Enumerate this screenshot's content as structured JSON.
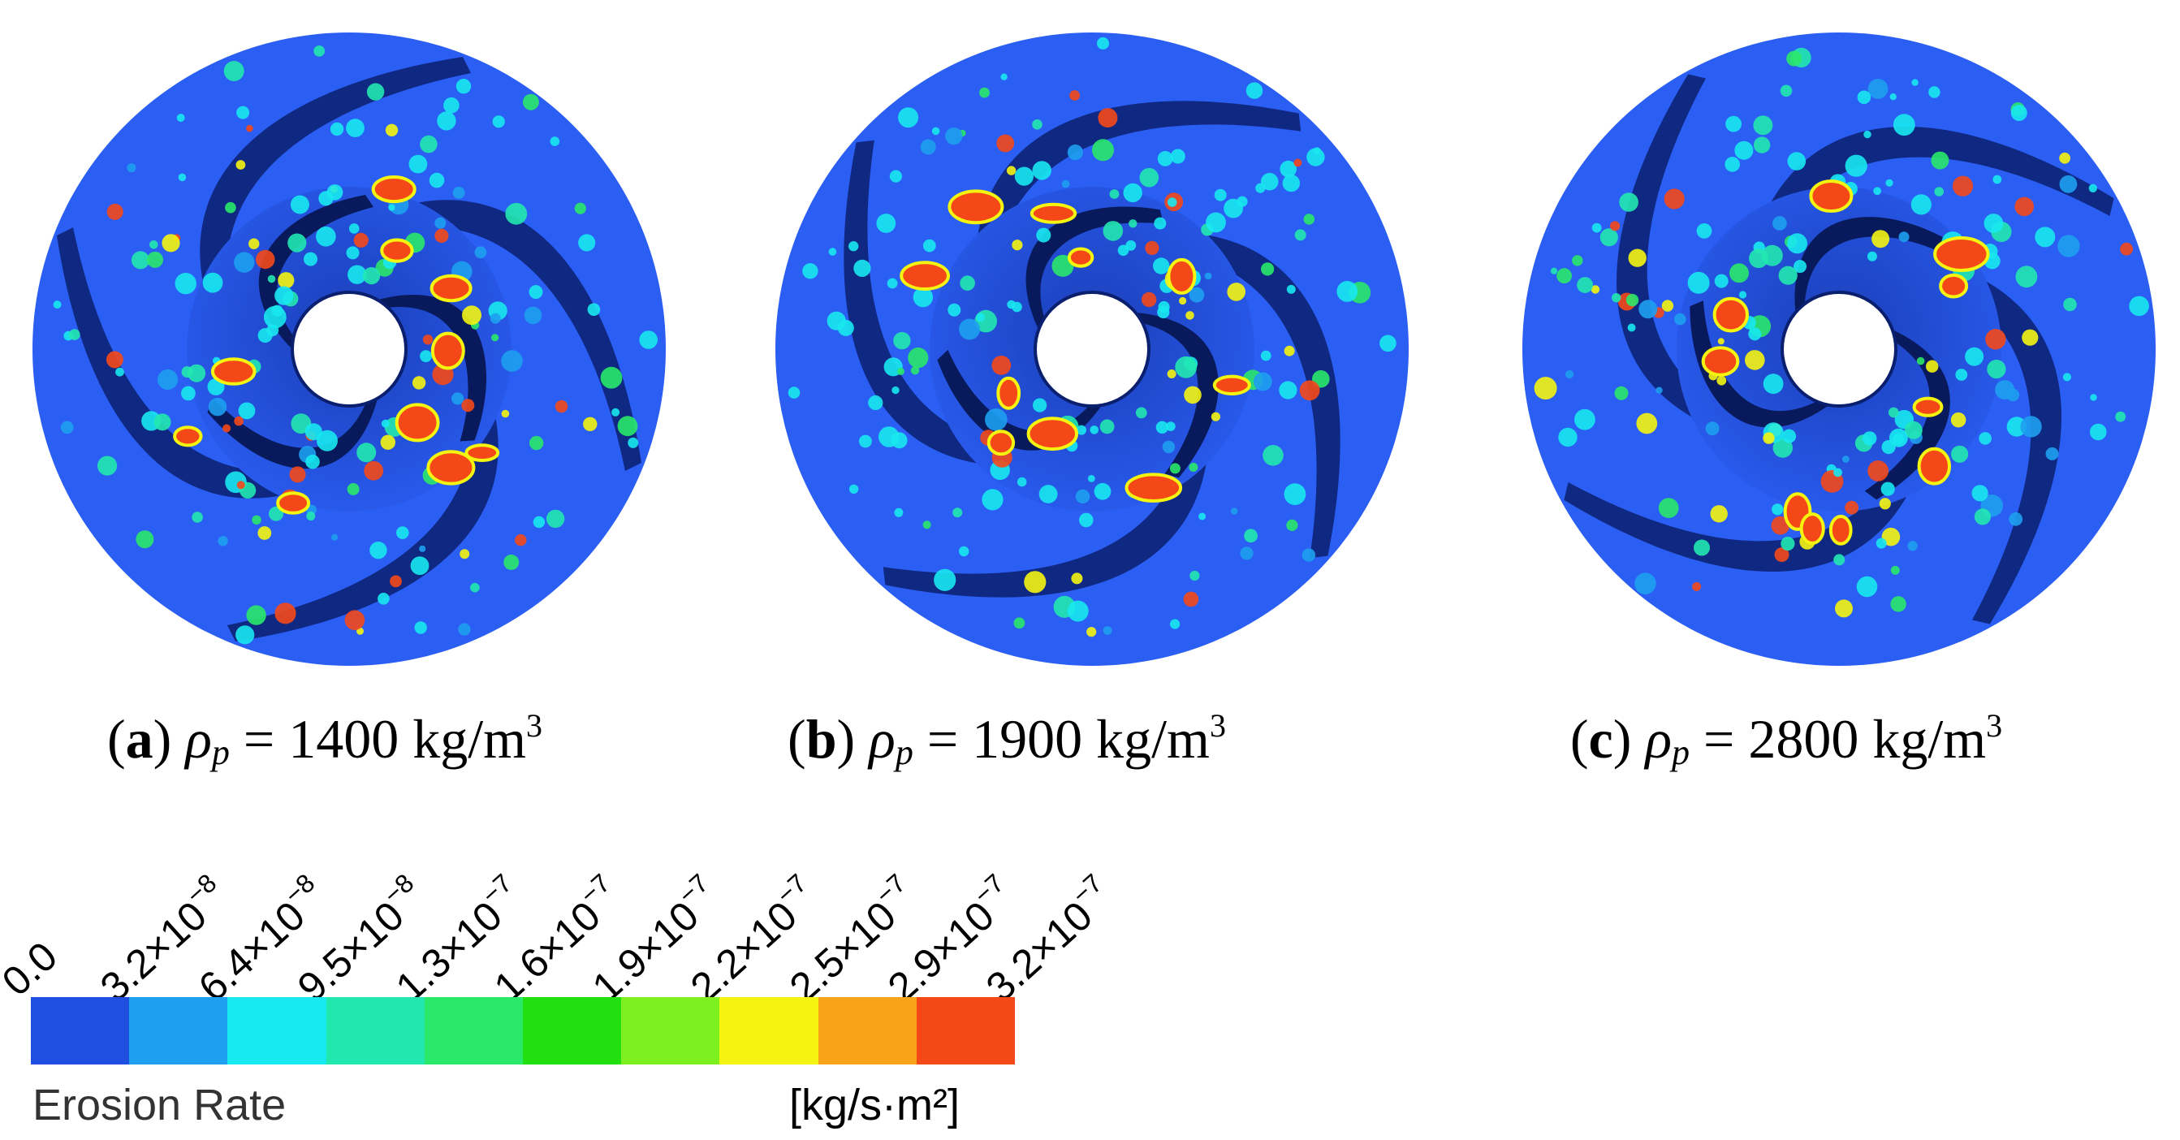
{
  "panels": [
    {
      "label": "a",
      "symbol": "ρ",
      "sub": "p",
      "text": " = 1400 kg/m",
      "sup": "3"
    },
    {
      "label": "b",
      "symbol": "ρ",
      "sub": "p",
      "text": " = 1900 kg/m",
      "sup": "3"
    },
    {
      "label": "c",
      "symbol": "ρ",
      "sub": "p",
      "text": " = 2800 kg/m",
      "sup": "3"
    }
  ],
  "legend": {
    "title": "Erosion Rate",
    "unit": "[kg/s·m²]",
    "ticks": [
      {
        "base": "0.0",
        "exp": ""
      },
      {
        "base": "3.2×10",
        "exp": "−8"
      },
      {
        "base": "6.4×10",
        "exp": "−8"
      },
      {
        "base": "9.5×10",
        "exp": "−8"
      },
      {
        "base": "1.3×10",
        "exp": "−7"
      },
      {
        "base": "1.6×10",
        "exp": "−7"
      },
      {
        "base": "1.9×10",
        "exp": "−7"
      },
      {
        "base": "2.2×10",
        "exp": "−7"
      },
      {
        "base": "2.5×10",
        "exp": "−7"
      },
      {
        "base": "2.9×10",
        "exp": "−7"
      },
      {
        "base": "3.2×10",
        "exp": "−7"
      }
    ],
    "colors": [
      "#1f4fe0",
      "#1e9ff0",
      "#18e8f0",
      "#22e8b0",
      "#2ae86a",
      "#22e010",
      "#7ef020",
      "#f4f410",
      "#f8a418",
      "#f44818"
    ]
  }
}
